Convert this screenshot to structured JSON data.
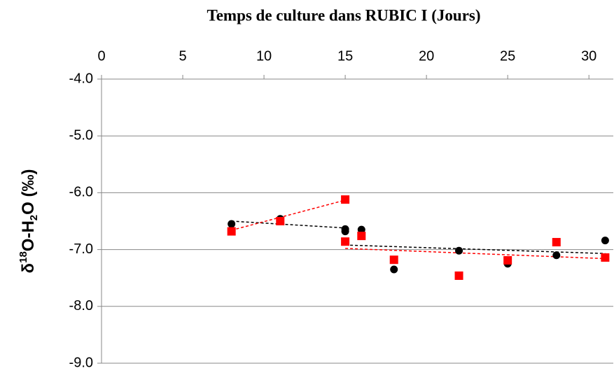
{
  "chart_data": {
    "type": "scatter",
    "title": "Temps de culture dans RUBIC I (Jours)",
    "ylabel_parts": [
      "δ",
      "18",
      "O-H",
      "2",
      "O (‰)"
    ],
    "xlim": [
      0,
      31.5
    ],
    "xticks": [
      0,
      5,
      10,
      15,
      20,
      25,
      30
    ],
    "x_axis_position": "top",
    "ylim": [
      -9,
      -4
    ],
    "yticks": [
      {
        "value": -4,
        "label": "-4.0"
      },
      {
        "value": -5,
        "label": "-5.0"
      },
      {
        "value": -6,
        "label": "-6.0"
      },
      {
        "value": -7,
        "label": "-7.0"
      },
      {
        "value": -8,
        "label": "-8.0"
      },
      {
        "value": -9,
        "label": "-9.0"
      }
    ],
    "grid": true,
    "series": [
      {
        "color": "#000000",
        "marker": "circle",
        "x": [
          8,
          11,
          15,
          15,
          16,
          18,
          22,
          25,
          28,
          31
        ],
        "values": [
          -6.55,
          -6.46,
          -6.64,
          -6.68,
          -6.65,
          -7.35,
          -7.02,
          -7.25,
          -7.1,
          -6.84
        ]
      },
      {
        "color": "#ff0000",
        "marker": "square",
        "x": [
          8,
          11,
          15,
          15,
          16,
          18,
          22,
          25,
          28,
          31
        ],
        "values": [
          -6.68,
          -6.5,
          -6.12,
          -6.86,
          -6.76,
          -7.18,
          -7.46,
          -7.19,
          -6.87,
          -7.14
        ]
      }
    ],
    "trendlines": [
      {
        "color": "#000000",
        "x": [
          8,
          15
        ],
        "values": [
          -6.5,
          -6.62
        ]
      },
      {
        "color": "#000000",
        "x": [
          15,
          31
        ],
        "values": [
          -6.92,
          -7.07
        ]
      },
      {
        "color": "#ff0000",
        "x": [
          8,
          15
        ],
        "values": [
          -6.66,
          -6.13
        ]
      },
      {
        "color": "#ff0000",
        "x": [
          15,
          31
        ],
        "values": [
          -6.98,
          -7.16
        ]
      }
    ]
  }
}
